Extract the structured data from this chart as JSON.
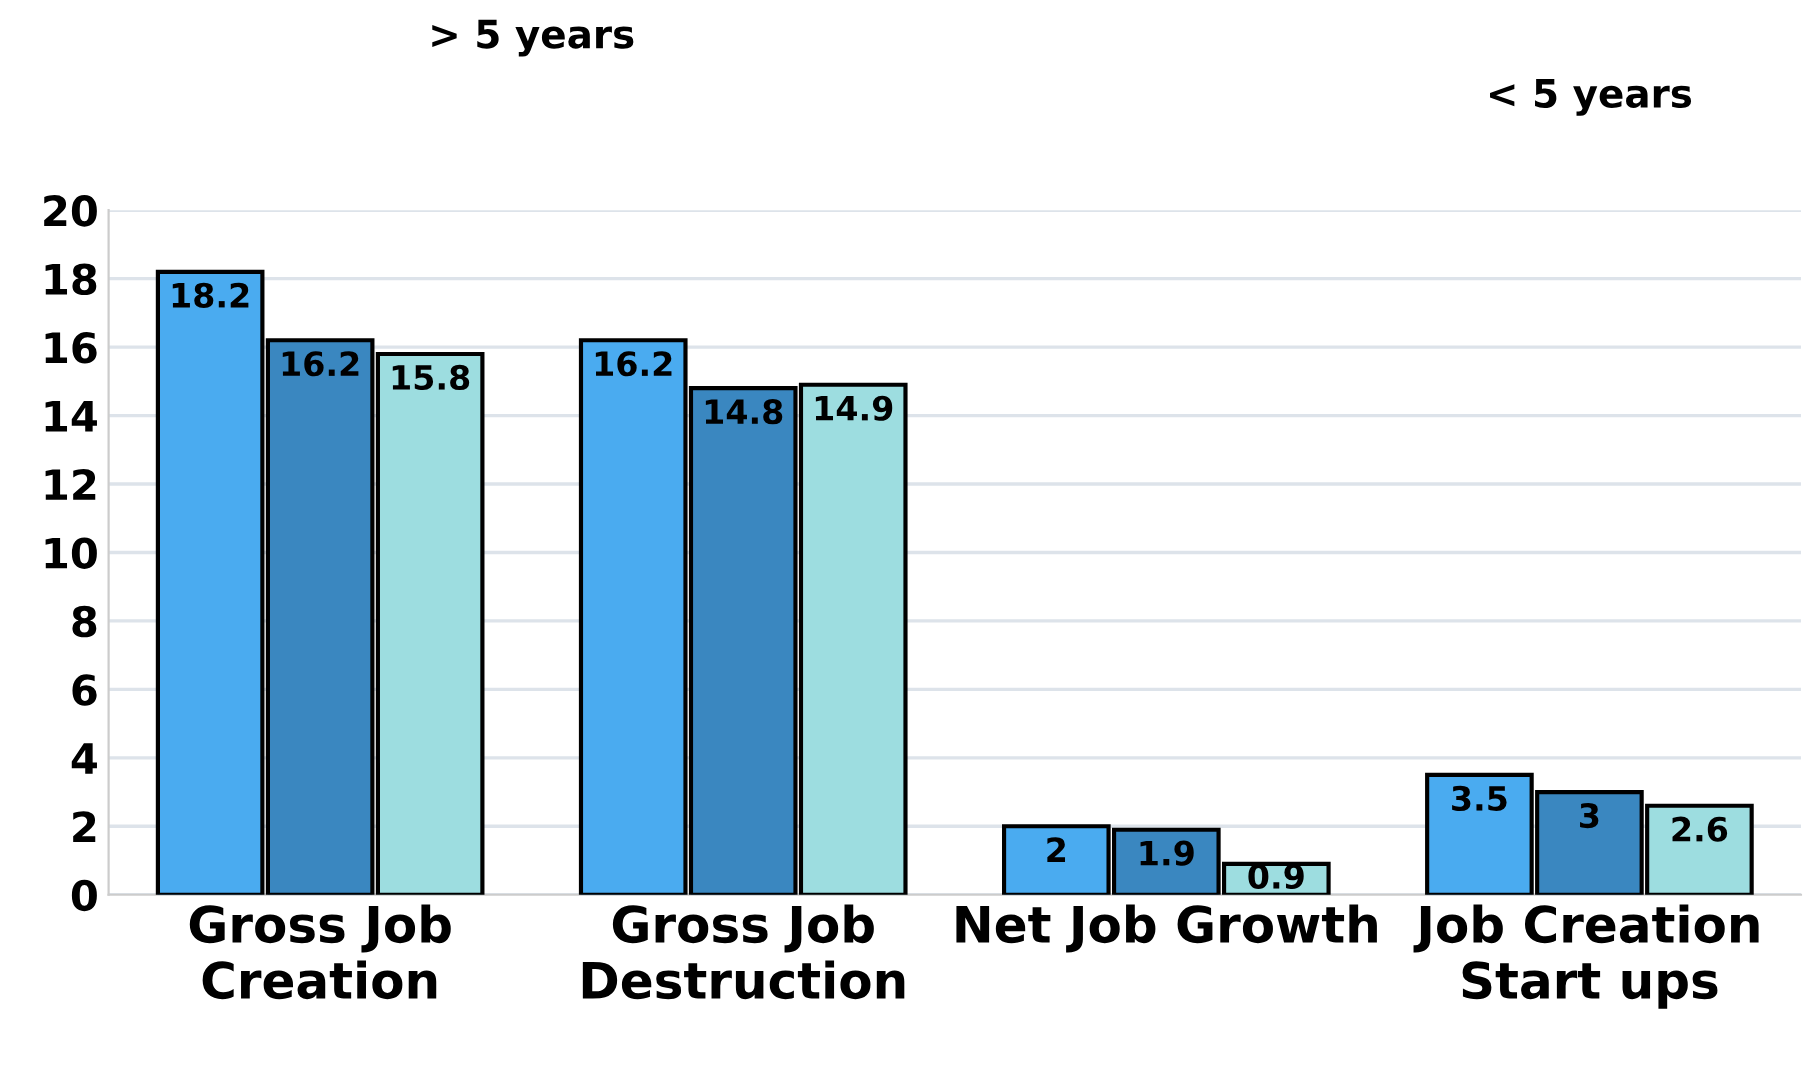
{
  "chart_data": {
    "type": "bar",
    "categories": [
      "Gross Job\nCreation",
      "Gross Job\nDestruction",
      "Net Job Growth",
      "Job Creation\nStart ups"
    ],
    "series": [
      {
        "color": "#4aabf0",
        "values": [
          18.2,
          16.2,
          2,
          3.5
        ]
      },
      {
        "color": "#3a87c0",
        "values": [
          16.2,
          14.8,
          1.9,
          3
        ]
      },
      {
        "color": "#9ddde0",
        "values": [
          15.8,
          14.9,
          0.9,
          2.6
        ]
      }
    ],
    "ylim": [
      0,
      20
    ],
    "yticks": [
      0,
      2,
      4,
      6,
      8,
      10,
      12,
      14,
      16,
      18,
      20
    ],
    "grid": "y",
    "data_labels": true,
    "legend": false,
    "annotations": [
      "> 5 years",
      "< 5 years"
    ]
  }
}
